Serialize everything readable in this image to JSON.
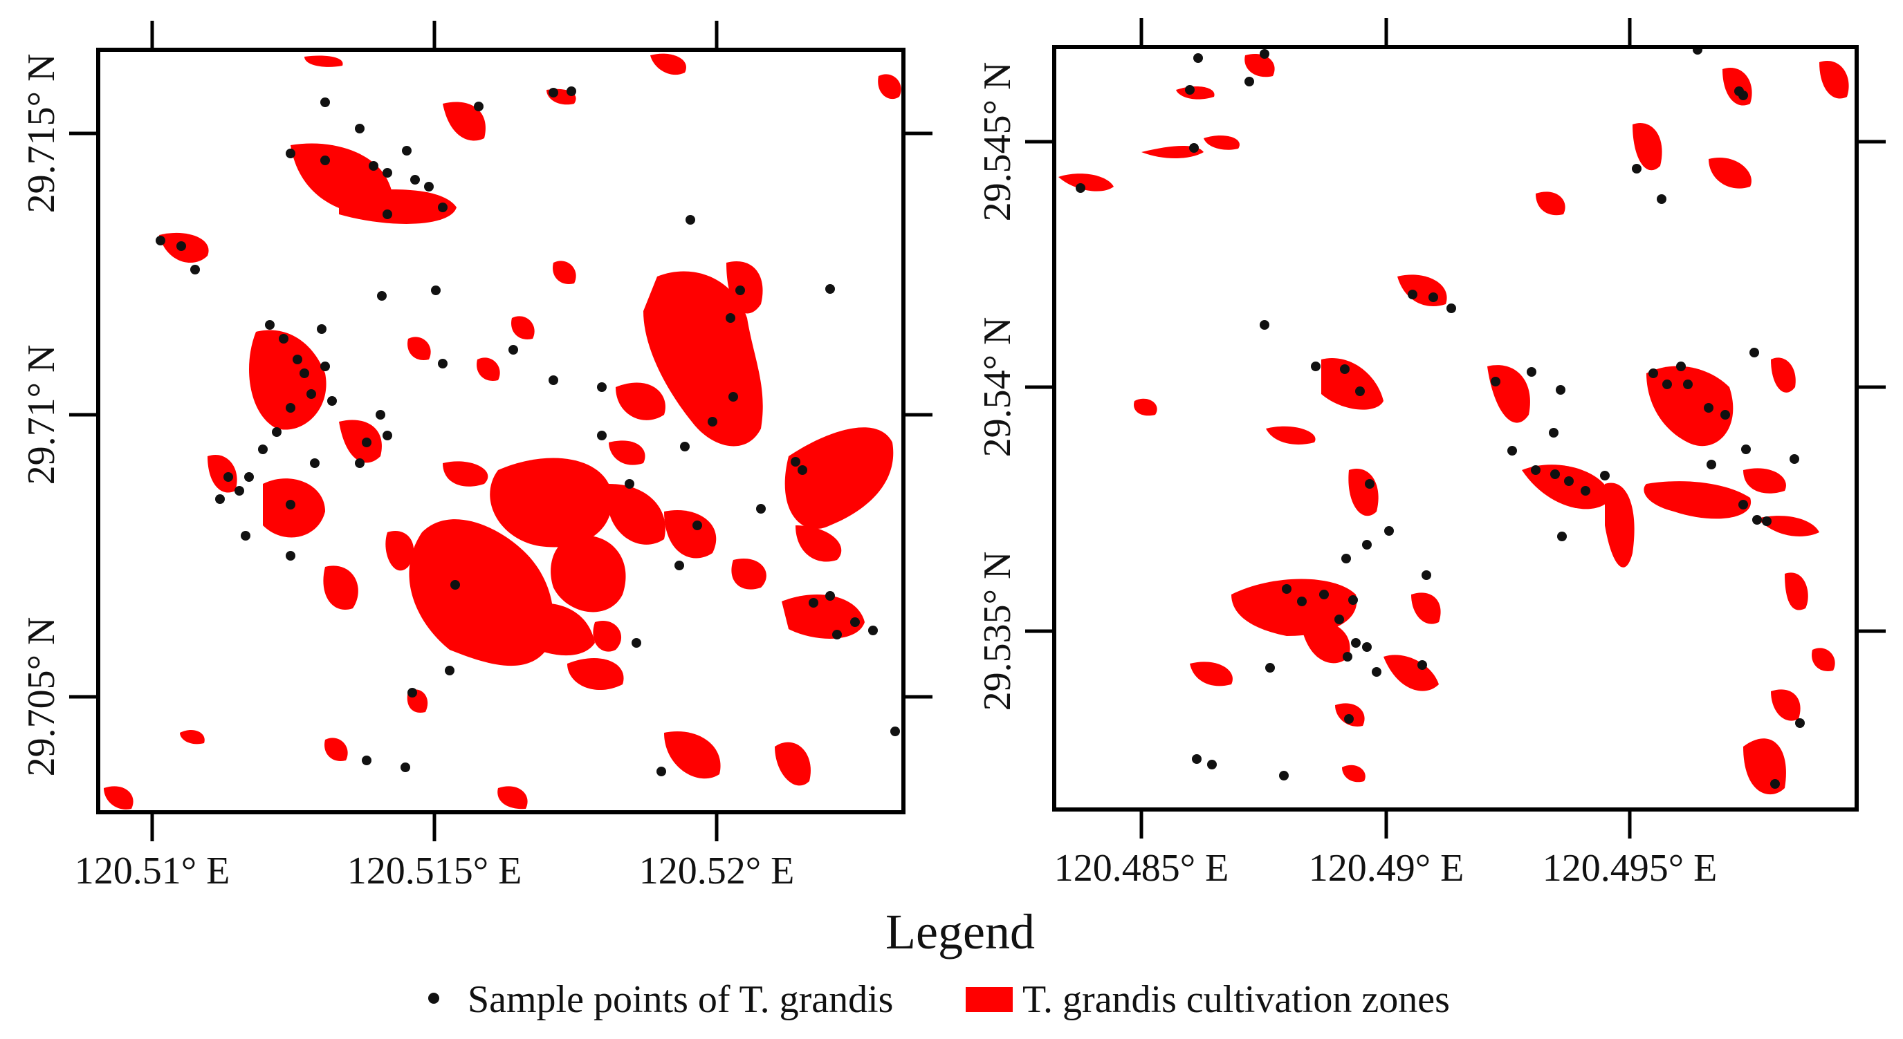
{
  "colors": {
    "zone": "#ff0000",
    "point": "#111111",
    "frame": "#000000",
    "background": "#ffffff"
  },
  "maps": [
    {
      "id": "left",
      "x_ticks": [
        "120.51° E",
        "120.515° E",
        "120.52° E"
      ],
      "y_ticks": [
        "29.715° N",
        "29.71° N",
        "29.705° N"
      ]
    },
    {
      "id": "right",
      "x_ticks": [
        "120.485° E",
        "120.49° E",
        "120.495° E"
      ],
      "y_ticks": [
        "29.545° N",
        "29.54° N",
        "29.535° N"
      ]
    }
  ],
  "legend": {
    "title": "Legend",
    "items": [
      {
        "label": "Sample points of T. grandis",
        "symbol": "point"
      },
      {
        "label": "T. grandis cultivation zones",
        "symbol": "zone"
      }
    ]
  }
}
